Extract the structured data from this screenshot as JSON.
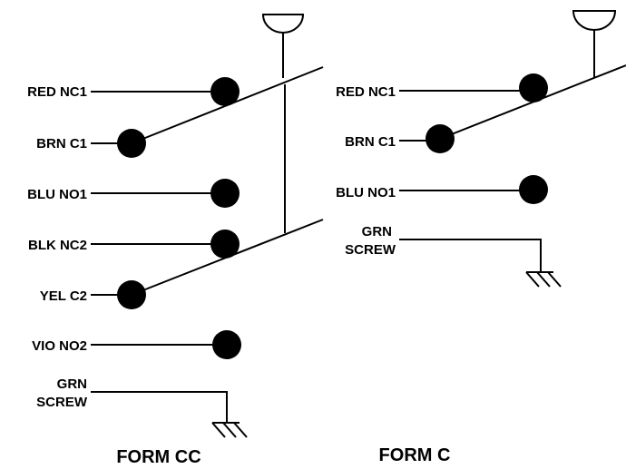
{
  "form_cc": {
    "title": "FORM CC",
    "labels": {
      "red_nc1": "RED NC1",
      "brn_c1": "BRN C1",
      "blu_no1": "BLU NO1",
      "blk_nc2": "BLK NC2",
      "yel_c2": "YEL C2",
      "vio_no2": "VIO NO2",
      "grn": "GRN",
      "screw": "SCREW"
    }
  },
  "form_c": {
    "title": "FORM C",
    "labels": {
      "red_nc1": "RED NC1",
      "brn_c1": "BRN C1",
      "blu_no1": "BLU NO1",
      "grn": "GRN",
      "screw": "SCREW"
    }
  }
}
